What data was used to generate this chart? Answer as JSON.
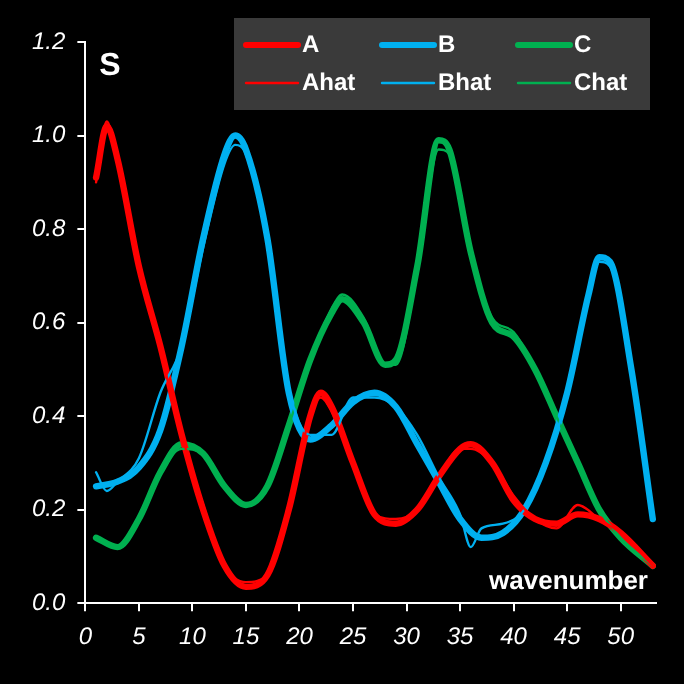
{
  "chart_data": {
    "type": "line",
    "ylabel": "S",
    "xlabel": "wavenumber",
    "xlim": [
      0,
      53.3
    ],
    "xticks": [
      0,
      5,
      10,
      15,
      20,
      25,
      30,
      35,
      40,
      45,
      50
    ],
    "ylim": [
      0,
      1.2
    ],
    "yticks": [
      {
        "value": 0,
        "label": "0.0"
      },
      0.2,
      0.4,
      0.6,
      0.8,
      {
        "value": 1,
        "label": "1.0"
      },
      1.2
    ],
    "grid": false,
    "legend": "top right",
    "marker": "none",
    "series": [
      {
        "name": "A",
        "color": "#ff0000",
        "x": [
          1,
          2,
          3,
          5,
          7,
          9,
          11,
          13,
          15,
          17,
          19,
          21,
          22,
          23,
          25,
          27,
          29,
          31,
          33,
          35,
          36,
          38,
          40,
          42,
          44,
          46,
          48,
          50,
          53
        ],
        "values": [
          0.91,
          1.02,
          0.95,
          0.72,
          0.55,
          0.36,
          0.2,
          0.08,
          0.035,
          0.06,
          0.2,
          0.4,
          0.45,
          0.42,
          0.3,
          0.19,
          0.17,
          0.2,
          0.27,
          0.33,
          0.34,
          0.3,
          0.22,
          0.18,
          0.17,
          0.19,
          0.18,
          0.15,
          0.08
        ]
      },
      {
        "name": "B",
        "color": "#00b0f0",
        "x": [
          1,
          3,
          5,
          7,
          9,
          11,
          13,
          14,
          15,
          17,
          19,
          21,
          23,
          25,
          27,
          29,
          31,
          33,
          35,
          37,
          39,
          41,
          43,
          45,
          47,
          48,
          49,
          51,
          53
        ],
        "values": [
          0.25,
          0.26,
          0.29,
          0.37,
          0.55,
          0.78,
          0.96,
          1.0,
          0.97,
          0.78,
          0.45,
          0.35,
          0.38,
          0.43,
          0.45,
          0.42,
          0.34,
          0.26,
          0.18,
          0.14,
          0.15,
          0.2,
          0.3,
          0.45,
          0.66,
          0.74,
          0.73,
          0.5,
          0.18
        ]
      },
      {
        "name": "C",
        "color": "#00b050",
        "x": [
          1,
          3,
          5,
          7,
          9,
          11,
          13,
          15,
          17,
          19,
          21,
          23,
          24,
          26,
          28,
          29,
          31,
          33,
          34,
          36,
          38,
          40,
          42,
          44,
          46,
          48,
          50,
          53
        ],
        "values": [
          0.14,
          0.12,
          0.18,
          0.28,
          0.34,
          0.32,
          0.25,
          0.21,
          0.25,
          0.38,
          0.52,
          0.62,
          0.65,
          0.6,
          0.51,
          0.52,
          0.72,
          0.99,
          0.97,
          0.75,
          0.6,
          0.57,
          0.5,
          0.4,
          0.3,
          0.2,
          0.14,
          0.08
        ]
      },
      {
        "name": "Ahat",
        "color": "#ff0000",
        "x": [
          1,
          2,
          3,
          5,
          7,
          9,
          11,
          13,
          15,
          17,
          19,
          21,
          22,
          23,
          25,
          27,
          29,
          31,
          33,
          35,
          36,
          38,
          40,
          42,
          44,
          46,
          48,
          50,
          53
        ],
        "values": [
          0.9,
          1.03,
          0.94,
          0.73,
          0.54,
          0.36,
          0.21,
          0.08,
          0.045,
          0.06,
          0.21,
          0.4,
          0.44,
          0.41,
          0.3,
          0.19,
          0.18,
          0.2,
          0.27,
          0.33,
          0.33,
          0.3,
          0.23,
          0.18,
          0.16,
          0.21,
          0.18,
          0.15,
          0.08
        ]
      },
      {
        "name": "Bhat",
        "color": "#00b0f0",
        "x": [
          1,
          2,
          3,
          5,
          7,
          9,
          11,
          13,
          14,
          15,
          17,
          19,
          21,
          23,
          25,
          27,
          29,
          31,
          33,
          35,
          36,
          37,
          39,
          41,
          43,
          45,
          47,
          48,
          49,
          51,
          53
        ],
        "values": [
          0.28,
          0.24,
          0.26,
          0.31,
          0.45,
          0.55,
          0.76,
          0.94,
          0.98,
          0.96,
          0.77,
          0.46,
          0.36,
          0.36,
          0.44,
          0.44,
          0.42,
          0.36,
          0.27,
          0.19,
          0.12,
          0.16,
          0.17,
          0.2,
          0.3,
          0.44,
          0.65,
          0.73,
          0.72,
          0.5,
          0.18
        ]
      },
      {
        "name": "Chat",
        "color": "#00b050",
        "x": [
          1,
          3,
          5,
          7,
          9,
          11,
          13,
          15,
          17,
          19,
          21,
          23,
          24,
          26,
          28,
          29,
          31,
          33,
          34,
          36,
          38,
          40,
          42,
          44,
          46,
          48,
          50,
          53
        ],
        "values": [
          0.14,
          0.12,
          0.18,
          0.28,
          0.33,
          0.32,
          0.25,
          0.21,
          0.25,
          0.38,
          0.52,
          0.63,
          0.66,
          0.61,
          0.51,
          0.51,
          0.71,
          0.97,
          0.96,
          0.75,
          0.61,
          0.58,
          0.5,
          0.4,
          0.3,
          0.2,
          0.14,
          0.08
        ]
      }
    ]
  }
}
